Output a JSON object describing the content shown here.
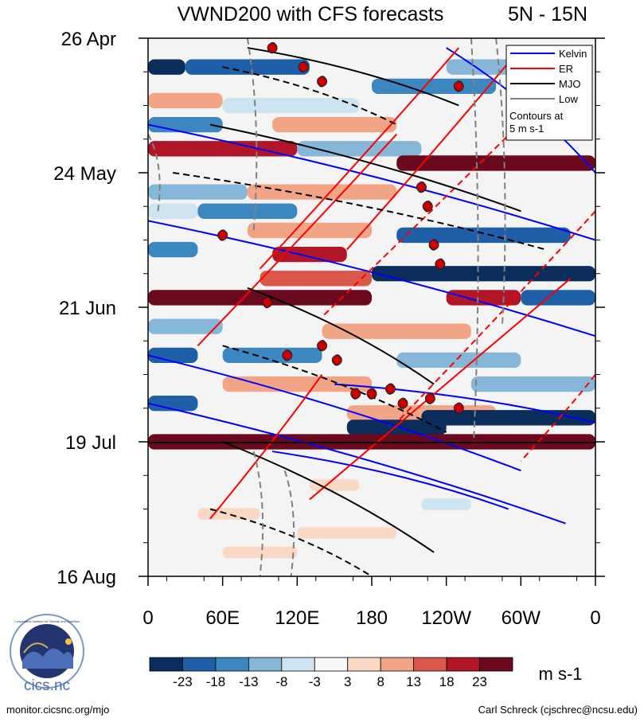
{
  "page": {
    "footer_left": "monitor.cicsnc.org/mjo",
    "footer_right": "Carl Schreck (cjschrec@ncsu.edu)",
    "logo_text": "cics.nc",
    "logo_ring_text": "Cooperative Institute for Climate and Satellites"
  },
  "chart_data": {
    "type": "heatmap",
    "title": "VWND200 with CFS forecasts",
    "subtitle": "5N - 15N",
    "x_ticks": [
      "0",
      "60E",
      "120E",
      "180",
      "120W",
      "60W",
      "0"
    ],
    "x_range_deg": [
      0,
      360
    ],
    "y_ticks": [
      "26 Apr",
      "24 May",
      "21 Jun",
      "19 Jul",
      "16 Aug"
    ],
    "y_tick_days": [
      0,
      28,
      56,
      84,
      112
    ],
    "forecast_start_day": 84,
    "colorbar": {
      "unit": "m s-1",
      "labels": [
        "-23",
        "-18",
        "-13",
        "-8",
        "-3",
        "3",
        "8",
        "13",
        "18",
        "23"
      ],
      "colors": [
        "#0b2d5c",
        "#1f5fa8",
        "#3d87c0",
        "#86b6d8",
        "#cfe4f1",
        "#f7f7f7",
        "#fad8c6",
        "#f2a487",
        "#d9584b",
        "#b01528",
        "#6b0a1e"
      ]
    },
    "legend": {
      "entries": [
        {
          "name": "Kelvin",
          "color": "#0000ff"
        },
        {
          "name": "ER",
          "color": "#ff0000"
        },
        {
          "name": "MJO",
          "color": "#000000"
        },
        {
          "name": "Low",
          "color": "#808080"
        }
      ],
      "note": "Contours at\n5 m s-1",
      "placement": "top-right"
    },
    "observed_bands": [
      {
        "day": 6,
        "lon0": 0,
        "lon1": 30,
        "value": -25
      },
      {
        "day": 6,
        "lon0": 30,
        "lon1": 130,
        "value": -20
      },
      {
        "day": 6,
        "lon0": 240,
        "lon1": 300,
        "value": -12
      },
      {
        "day": 10,
        "lon0": 180,
        "lon1": 280,
        "value": -18
      },
      {
        "day": 13,
        "lon0": 0,
        "lon1": 60,
        "value": 12
      },
      {
        "day": 14,
        "lon0": 60,
        "lon1": 170,
        "value": -6
      },
      {
        "day": 18,
        "lon0": 0,
        "lon1": 60,
        "value": -15
      },
      {
        "day": 18,
        "lon0": 100,
        "lon1": 200,
        "value": 8
      },
      {
        "day": 23,
        "lon0": 0,
        "lon1": 120,
        "value": 22
      },
      {
        "day": 23,
        "lon0": 120,
        "lon1": 220,
        "value": -10
      },
      {
        "day": 26,
        "lon0": 200,
        "lon1": 360,
        "value": 24
      },
      {
        "day": 32,
        "lon0": 0,
        "lon1": 80,
        "value": -12
      },
      {
        "day": 32,
        "lon0": 80,
        "lon1": 200,
        "value": 8
      },
      {
        "day": 36,
        "lon0": 0,
        "lon1": 40,
        "value": -8
      },
      {
        "day": 36,
        "lon0": 40,
        "lon1": 120,
        "value": -18
      },
      {
        "day": 40,
        "lon0": 80,
        "lon1": 180,
        "value": 12
      },
      {
        "day": 41,
        "lon0": 200,
        "lon1": 340,
        "value": -20
      },
      {
        "day": 44,
        "lon0": 0,
        "lon1": 40,
        "value": -14
      },
      {
        "day": 45,
        "lon0": 100,
        "lon1": 160,
        "value": 18
      },
      {
        "day": 49,
        "lon0": 180,
        "lon1": 360,
        "value": -25
      },
      {
        "day": 50,
        "lon0": 90,
        "lon1": 180,
        "value": 14
      },
      {
        "day": 54,
        "lon0": 0,
        "lon1": 180,
        "value": 25
      },
      {
        "day": 54,
        "lon0": 240,
        "lon1": 300,
        "value": 20
      },
      {
        "day": 54,
        "lon0": 300,
        "lon1": 360,
        "value": -22
      },
      {
        "day": 60,
        "lon0": 0,
        "lon1": 60,
        "value": -10
      },
      {
        "day": 61,
        "lon0": 140,
        "lon1": 260,
        "value": 10
      },
      {
        "day": 66,
        "lon0": 60,
        "lon1": 140,
        "value": -16
      },
      {
        "day": 66,
        "lon0": 0,
        "lon1": 40,
        "value": -22
      },
      {
        "day": 67,
        "lon0": 200,
        "lon1": 300,
        "value": -10
      },
      {
        "day": 72,
        "lon0": 60,
        "lon1": 180,
        "value": 12
      },
      {
        "day": 72,
        "lon0": 260,
        "lon1": 360,
        "value": -10
      },
      {
        "day": 76,
        "lon0": 0,
        "lon1": 40,
        "value": -20
      },
      {
        "day": 78,
        "lon0": 160,
        "lon1": 280,
        "value": 8
      },
      {
        "day": 79,
        "lon0": 220,
        "lon1": 360,
        "value": -25
      },
      {
        "day": 81,
        "lon0": 160,
        "lon1": 240,
        "value": -25
      },
      {
        "day": 84,
        "lon0": 0,
        "lon1": 360,
        "value": 25
      }
    ],
    "forecast_patches": [
      {
        "day": 93,
        "lon0": 130,
        "lon1": 170,
        "value": 5
      },
      {
        "day": 97,
        "lon0": 220,
        "lon1": 260,
        "value": -4
      },
      {
        "day": 99,
        "lon0": 40,
        "lon1": 90,
        "value": 5
      },
      {
        "day": 103,
        "lon0": 120,
        "lon1": 200,
        "value": 6
      },
      {
        "day": 107,
        "lon0": 60,
        "lon1": 120,
        "value": 4
      }
    ],
    "contours": [
      {
        "mode": "Kelvin",
        "style": "solid",
        "lon0": 0,
        "day0": 18,
        "lon1": 360,
        "day1": 42
      },
      {
        "mode": "Kelvin",
        "style": "solid",
        "lon0": 0,
        "day0": 38,
        "lon1": 360,
        "day1": 62
      },
      {
        "mode": "Kelvin",
        "style": "solid",
        "lon0": 0,
        "day0": 66,
        "lon1": 300,
        "day1": 90
      },
      {
        "mode": "Kelvin",
        "style": "solid",
        "lon0": 0,
        "day0": 76,
        "lon1": 336,
        "day1": 101
      },
      {
        "mode": "Kelvin",
        "style": "solid",
        "lon0": 100,
        "day0": 86,
        "lon1": 290,
        "day1": 98
      },
      {
        "mode": "Kelvin",
        "style": "solid",
        "lon0": 150,
        "day0": 72,
        "lon1": 360,
        "day1": 80
      },
      {
        "mode": "Kelvin",
        "style": "solid",
        "lon0": 240,
        "day0": 2,
        "lon1": 360,
        "day1": 28
      },
      {
        "mode": "ER",
        "style": "solid",
        "lon0": 300,
        "day0": 2,
        "lon1": 160,
        "day1": 44
      },
      {
        "mode": "ER",
        "style": "solid",
        "lon0": 250,
        "day0": 2,
        "lon1": 90,
        "day1": 48
      },
      {
        "mode": "ER",
        "style": "dash",
        "lon0": 330,
        "day0": 10,
        "lon1": 140,
        "day1": 58
      },
      {
        "mode": "ER",
        "style": "solid",
        "lon0": 200,
        "day0": 20,
        "lon1": 40,
        "day1": 64
      },
      {
        "mode": "ER",
        "style": "dash",
        "lon0": 360,
        "day0": 36,
        "lon1": 200,
        "day1": 80
      },
      {
        "mode": "ER",
        "style": "solid",
        "lon0": 340,
        "day0": 50,
        "lon1": 130,
        "day1": 96
      },
      {
        "mode": "ER",
        "style": "dash",
        "lon0": 360,
        "day0": 70,
        "lon1": 300,
        "day1": 88
      },
      {
        "mode": "ER",
        "style": "solid",
        "lon0": 140,
        "day0": 70,
        "lon1": 50,
        "day1": 100
      },
      {
        "mode": "MJO",
        "style": "solid",
        "lon0": 80,
        "day0": 2,
        "lon1": 250,
        "day1": 14
      },
      {
        "mode": "MJO",
        "style": "dash",
        "lon0": 60,
        "day0": 6,
        "lon1": 200,
        "day1": 18
      },
      {
        "mode": "MJO",
        "style": "solid",
        "lon0": 50,
        "day0": 18,
        "lon1": 300,
        "day1": 36
      },
      {
        "mode": "MJO",
        "style": "dash",
        "lon0": 20,
        "day0": 28,
        "lon1": 320,
        "day1": 44
      },
      {
        "mode": "MJO",
        "style": "solid",
        "lon0": 80,
        "day0": 52,
        "lon1": 230,
        "day1": 72
      },
      {
        "mode": "MJO",
        "style": "dash",
        "lon0": 60,
        "day0": 64,
        "lon1": 240,
        "day1": 82
      },
      {
        "mode": "MJO",
        "style": "solid",
        "lon0": 60,
        "day0": 84,
        "lon1": 230,
        "day1": 107
      },
      {
        "mode": "MJO",
        "style": "dash",
        "lon0": 50,
        "day0": 98,
        "lon1": 180,
        "day1": 112
      },
      {
        "mode": "Low",
        "style": "dash",
        "lon0": 80,
        "day0": 0,
        "lon1": 85,
        "day1": 40
      },
      {
        "mode": "Low",
        "style": "dash",
        "lon0": 260,
        "day0": 0,
        "lon1": 262,
        "day1": 84
      },
      {
        "mode": "Low",
        "style": "dash",
        "lon0": 280,
        "day0": 0,
        "lon1": 285,
        "day1": 60
      },
      {
        "mode": "Low",
        "style": "dash",
        "lon0": 0,
        "day0": 20,
        "lon1": 8,
        "day1": 36
      },
      {
        "mode": "Low",
        "style": "dash",
        "lon0": 85,
        "day0": 86,
        "lon1": 90,
        "day1": 112
      },
      {
        "mode": "Low",
        "style": "dash",
        "lon0": 110,
        "day0": 90,
        "lon1": 115,
        "day1": 112
      }
    ],
    "storms": [
      {
        "lon": 100,
        "day": 2
      },
      {
        "lon": 125,
        "day": 6
      },
      {
        "lon": 140,
        "day": 9
      },
      {
        "lon": 250,
        "day": 10
      },
      {
        "lon": 220,
        "day": 31
      },
      {
        "lon": 225,
        "day": 35
      },
      {
        "lon": 60,
        "day": 41
      },
      {
        "lon": 230,
        "day": 43
      },
      {
        "lon": 235,
        "day": 47
      },
      {
        "lon": 96,
        "day": 55
      },
      {
        "lon": 112,
        "day": 66
      },
      {
        "lon": 140,
        "day": 64
      },
      {
        "lon": 152,
        "day": 67
      },
      {
        "lon": 167,
        "day": 74
      },
      {
        "lon": 180,
        "day": 74
      },
      {
        "lon": 195,
        "day": 73
      },
      {
        "lon": 205,
        "day": 76
      },
      {
        "lon": 227,
        "day": 75
      },
      {
        "lon": 250,
        "day": 77
      }
    ]
  }
}
